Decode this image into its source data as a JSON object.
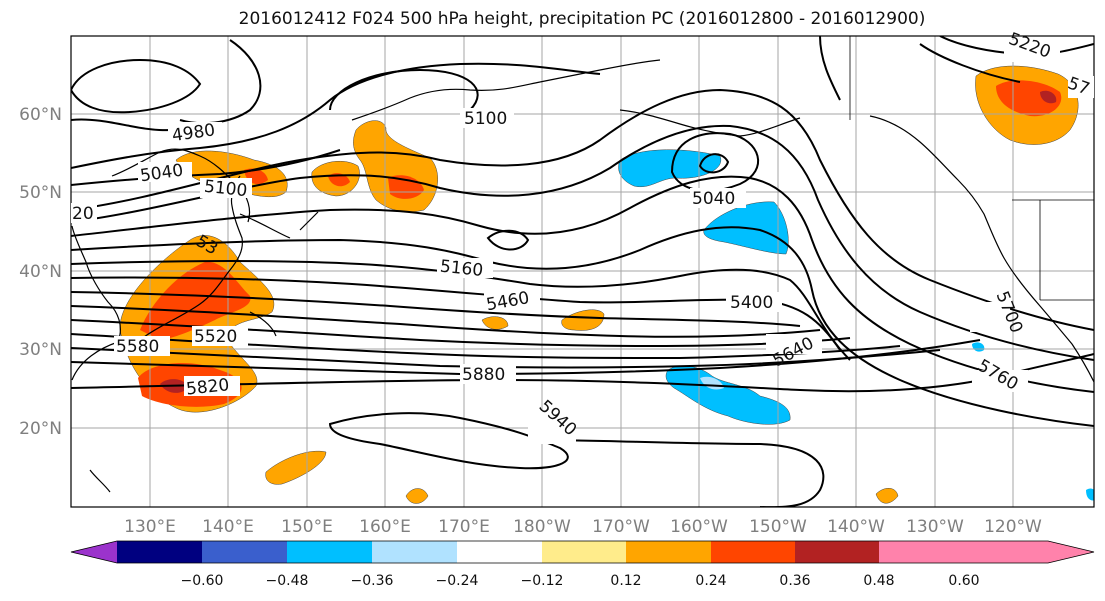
{
  "title": "2016012412 F024 500 hPa height, precipitation PC (2016012800 - 2016012900)",
  "lat_labels": [
    "60°N",
    "50°N",
    "40°N",
    "30°N",
    "20°N"
  ],
  "lon_labels": [
    "130°E",
    "140°E",
    "150°E",
    "160°E",
    "170°E",
    "180°W",
    "170°W",
    "160°W",
    "150°W",
    "140°W",
    "130°W",
    "120°W"
  ],
  "contour_labels": [
    "4980",
    "5040",
    "5100",
    "5100",
    "20",
    "53",
    "5160",
    "5460",
    "5400",
    "5580",
    "5520",
    "5820",
    "5880",
    "5640",
    "5700",
    "5760",
    "5940",
    "5040",
    "5220",
    "57"
  ],
  "colorbar": {
    "ticks": [
      "−0.60",
      "−0.48",
      "−0.36",
      "−0.24",
      "−0.12",
      "0.12",
      "0.24",
      "0.36",
      "0.48",
      "0.60"
    ],
    "colors": [
      "#9b33cc",
      "#000080",
      "#3a5fcd",
      "#00bfff",
      "#b0e2ff",
      "#ffffff",
      "#ffec8b",
      "#ffa500",
      "#ff4500",
      "#b22222",
      "#ff82ab"
    ]
  }
}
